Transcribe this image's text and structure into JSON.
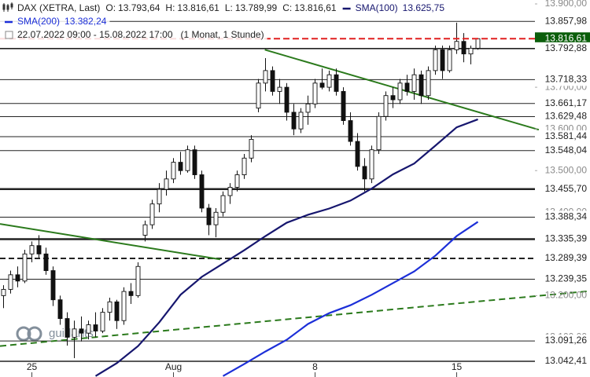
{
  "header": {
    "instrument": "DAX (XETRA, Last)",
    "ohlc": [
      {
        "key": "O:",
        "value": "13.793,64"
      },
      {
        "key": "H:",
        "value": "13.816,61"
      },
      {
        "key": "L:",
        "value": "13.789,99"
      },
      {
        "key": "C:",
        "value": "13.816,61"
      }
    ],
    "period": "22.07.2022 09:00 - 15.08.2022 17:00",
    "interval": "(1 Monat, 1 Stunde)"
  },
  "watermark": "guidants",
  "chart_data": {
    "type": "candlestick",
    "open": [
      13200,
      13215,
      13250,
      13235,
      13300,
      13320,
      13300,
      13260,
      13190,
      13145,
      13100,
      13120,
      13110,
      13130,
      13115,
      13160,
      13185,
      13140,
      13210,
      13200,
      13345,
      13370,
      13420,
      13455,
      13480,
      13520,
      13500,
      13550,
      13490,
      13410,
      13370,
      13400,
      13440,
      13460,
      13490,
      13530,
      13650,
      13710,
      13740,
      13690,
      13700,
      13640,
      13600,
      13640,
      13660,
      13710,
      13700,
      13730,
      13690,
      13620,
      13570,
      13510,
      13480,
      13550,
      13630,
      13680,
      13670,
      13710,
      13690,
      13730,
      13680,
      13740,
      13790,
      13740,
      13790,
      13810,
      13780,
      13793.64
    ],
    "high": [
      13225,
      13260,
      13270,
      13310,
      13330,
      13345,
      13315,
      13270,
      13200,
      13160,
      13140,
      13150,
      13140,
      13160,
      13170,
      13195,
      13190,
      13220,
      13230,
      13280,
      13380,
      13430,
      13470,
      13500,
      13530,
      13545,
      13560,
      13560,
      13500,
      13420,
      13410,
      13450,
      13470,
      13500,
      13540,
      13585,
      13720,
      13770,
      13750,
      13720,
      13710,
      13660,
      13650,
      13680,
      13720,
      13745,
      13740,
      13745,
      13700,
      13640,
      13590,
      13530,
      13560,
      13640,
      13690,
      13700,
      13720,
      13730,
      13745,
      13740,
      13750,
      13800,
      13800,
      13800,
      13855,
      13830,
      13800,
      13816.61
    ],
    "low": [
      13170,
      13205,
      13220,
      13230,
      13280,
      13290,
      13250,
      13175,
      13130,
      13080,
      13050,
      13090,
      13095,
      13100,
      13110,
      13140,
      13120,
      13130,
      13180,
      13195,
      13330,
      13360,
      13400,
      13440,
      13470,
      13490,
      13495,
      13480,
      13400,
      13345,
      13340,
      13390,
      13420,
      13450,
      13480,
      13520,
      13640,
      13690,
      13680,
      13660,
      13620,
      13585,
      13590,
      13610,
      13650,
      13695,
      13690,
      13680,
      13610,
      13560,
      13500,
      13450,
      13470,
      13540,
      13620,
      13650,
      13660,
      13680,
      13670,
      13660,
      13670,
      13730,
      13720,
      13735,
      13780,
      13760,
      13755,
      13789.99
    ],
    "close": [
      13215,
      13250,
      13235,
      13300,
      13320,
      13300,
      13260,
      13190,
      13145,
      13100,
      13120,
      13110,
      13130,
      13115,
      13160,
      13185,
      13140,
      13210,
      13200,
      13270,
      13370,
      13420,
      13455,
      13480,
      13520,
      13500,
      13550,
      13490,
      13410,
      13370,
      13400,
      13440,
      13460,
      13490,
      13530,
      13575,
      13710,
      13740,
      13690,
      13700,
      13640,
      13600,
      13640,
      13660,
      13710,
      13700,
      13730,
      13690,
      13620,
      13570,
      13510,
      13480,
      13550,
      13630,
      13680,
      13670,
      13710,
      13690,
      13730,
      13680,
      13740,
      13790,
      13740,
      13790,
      13810,
      13780,
      13793.64,
      13816.61
    ],
    "series": [
      {
        "name": "SMA(100)",
        "value_label": "13.625,75",
        "color": "#16166e",
        "x": [
          13,
          16,
          19,
          22,
          25,
          28,
          31,
          34,
          37,
          40,
          43,
          46,
          49,
          52,
          55,
          58,
          61,
          64,
          67
        ],
        "values": [
          13007,
          13038,
          13079,
          13136,
          13202,
          13245,
          13277,
          13309,
          13343,
          13375,
          13394,
          13409,
          13428,
          13457,
          13491,
          13517,
          13560,
          13604,
          13623
        ]
      },
      {
        "name": "SMA(200)",
        "value_label": "13.382,24",
        "color": "#1c2fd8",
        "x": [
          31,
          34,
          37,
          40,
          43,
          46,
          49,
          52,
          55,
          58,
          61,
          64,
          67
        ],
        "values": [
          13007,
          13036,
          13066,
          13094,
          13132,
          13158,
          13177,
          13202,
          13230,
          13258,
          13296,
          13343,
          13377
        ]
      }
    ],
    "trendlines": [
      {
        "color": "#2b7a1c",
        "dashed": false,
        "x": [
          36.9,
          75.6
        ],
        "values": [
          13790,
          13598
        ]
      },
      {
        "color": "#2b7a1c",
        "dashed": false,
        "x": [
          -0.5,
          30.6
        ],
        "values": [
          13372,
          13287
        ]
      },
      {
        "color": "#2b7a1c",
        "dashed": true,
        "x": [
          -0.5,
          82.83
        ],
        "values": [
          13079,
          13211
        ]
      }
    ],
    "xlim": [
      -0.5,
      82.83
    ],
    "ylim": [
      13004.7,
      13909.4
    ],
    "xticks": [
      {
        "value": 4,
        "label": "25"
      },
      {
        "value": 24,
        "label": "Aug"
      },
      {
        "value": 44,
        "label": "8"
      },
      {
        "value": 64,
        "label": "15"
      }
    ],
    "yticks": [
      {
        "value": 13900,
        "label": "13.900,00"
      },
      {
        "value": 13800,
        "label": "13.800,00"
      },
      {
        "value": 13700,
        "label": "13.700,00"
      },
      {
        "value": 13600,
        "label": "13.600,00"
      },
      {
        "value": 13500,
        "label": "13.500,00"
      },
      {
        "value": 13400,
        "label": "13.400,00"
      },
      {
        "value": 13200,
        "label": "13.200,00"
      },
      {
        "value": 13100,
        "label": "13.100,00"
      }
    ],
    "levels": [
      {
        "value": 13857.98,
        "label": "13.857,98",
        "style": "thin"
      },
      {
        "value": 13816.61,
        "label": "13.816,61",
        "style": "current"
      },
      {
        "value": 13792.88,
        "label": "13.792,88",
        "style": "medium"
      },
      {
        "value": 13718.33,
        "label": "13.718,33",
        "style": "thin"
      },
      {
        "value": 13661.17,
        "label": "13.661,17",
        "style": "thin"
      },
      {
        "value": 13629.48,
        "label": "13.629,48",
        "style": "thin"
      },
      {
        "value": 13581.44,
        "label": "13.581,44",
        "style": "thin"
      },
      {
        "value": 13548.04,
        "label": "13.548,04",
        "style": "thin"
      },
      {
        "value": 13455.7,
        "label": "13.455,70",
        "style": "thick"
      },
      {
        "value": 13388.34,
        "label": "13.388,34",
        "style": "thin"
      },
      {
        "value": 13335.39,
        "label": "13.335,39",
        "style": "thick"
      },
      {
        "value": 13289.39,
        "label": "13.289,39",
        "style": "dashed"
      },
      {
        "value": 13239.35,
        "label": "13.239,35",
        "style": "thin"
      },
      {
        "value": 13091.26,
        "label": "13.091,26",
        "style": "thin"
      },
      {
        "value": 13042.41,
        "label": "13.042,41",
        "style": "medium"
      }
    ],
    "current_color": "#0b5e0b",
    "level_color": "#222222",
    "current_line_color": "#e02020"
  }
}
